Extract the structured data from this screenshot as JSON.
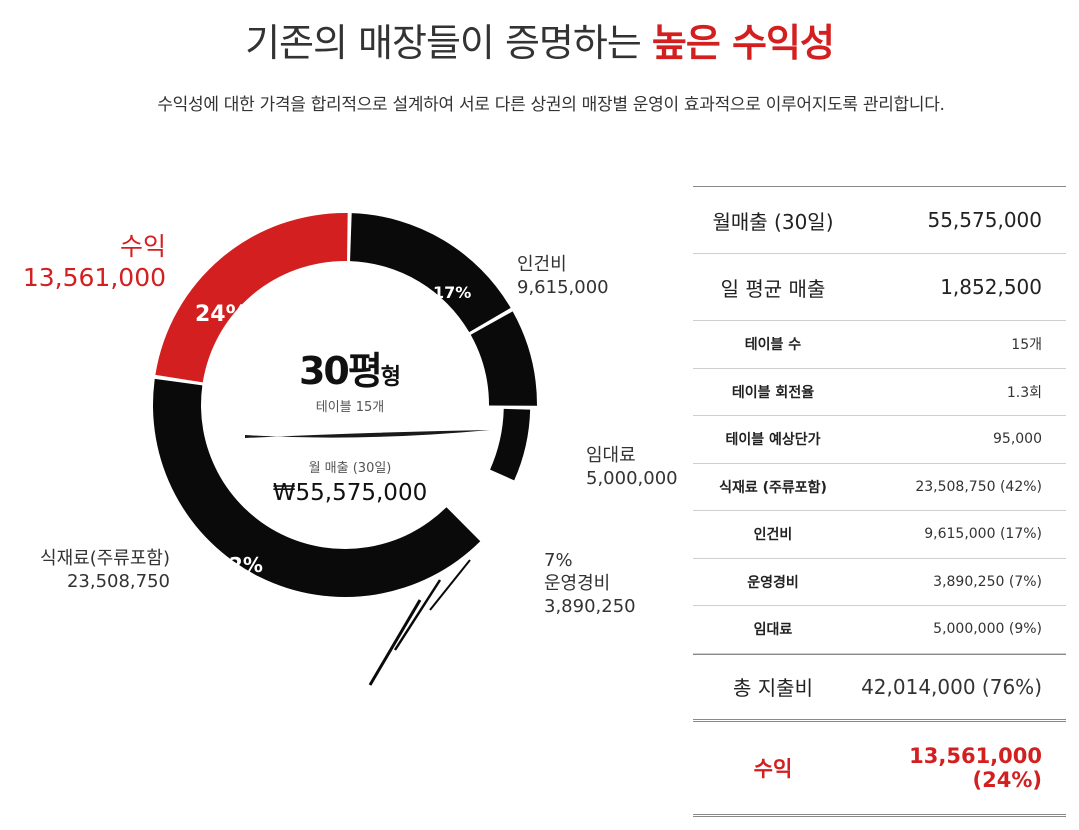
{
  "header": {
    "title_main": "기존의 매장들이 증명하는",
    "title_highlight": "높은 수익성",
    "subtitle": "수익성에 대한 가격을 합리적으로 설계하여 서로 다른 상권의 매장별 운영이 효과적으로 이루어지도록 관리합니다."
  },
  "center": {
    "size_num": "30평",
    "size_suffix": "형",
    "tables": "테이블 15개",
    "monthly_label": "월 매출 (30일)",
    "monthly_value": "₩55,575,000"
  },
  "colors": {
    "accent": "#d31f1f",
    "ink": "#0a0a0a"
  },
  "chart_data": {
    "type": "pie",
    "slices": [
      {
        "name": "수익",
        "value": 13561000,
        "pct_label": "24%",
        "color": "#d31f1f"
      },
      {
        "name": "인건비",
        "value": 9615000,
        "pct_label": "17%",
        "color": "#0a0a0a"
      },
      {
        "name": "임대료",
        "value": 5000000,
        "pct_label": "9%",
        "color": "#0a0a0a"
      },
      {
        "name": "운영경비",
        "value": 3890250,
        "pct_label": "7%",
        "color": "#0a0a0a"
      },
      {
        "name": "식재료(주류포함)",
        "value": 23508750,
        "pct_label": "42%",
        "color": "#0a0a0a"
      }
    ],
    "labels": {
      "profit_name": "수익",
      "profit_value": "13,561,000",
      "labor_name": "인건비",
      "labor_value": "9,615,000",
      "rent_name": "임대료",
      "rent_value": "5,000,000",
      "ops_pct": "7%",
      "ops_name": "운영경비",
      "ops_value": "3,890,250",
      "food_name": "식재료(주류포함)",
      "food_value": "23,508,750"
    }
  },
  "table": {
    "rows_big_top": [
      {
        "key": "월매출 (30일)",
        "value": "55,575,000"
      },
      {
        "key": "일 평균 매출",
        "value": "1,852,500"
      }
    ],
    "rows_small": [
      {
        "key": "테이블 수",
        "value": "15개"
      },
      {
        "key": "테이블 회전율",
        "value": "1.3회"
      },
      {
        "key": "테이블 예상단가",
        "value": "95,000"
      },
      {
        "key": "식재료 (주류포함)",
        "value": "23,508,750 (42%)"
      },
      {
        "key": "인건비",
        "value": "9,615,000 (17%)"
      },
      {
        "key": "운영경비",
        "value": "3,890,250 (7%)"
      },
      {
        "key": "임대료",
        "value": "5,000,000 (9%)"
      }
    ],
    "total": {
      "key": "총 지출비",
      "value": "42,014,000 (76%)"
    },
    "profit": {
      "key": "수익",
      "value_line1": "13,561,000",
      "value_line2": "(24%)"
    }
  }
}
